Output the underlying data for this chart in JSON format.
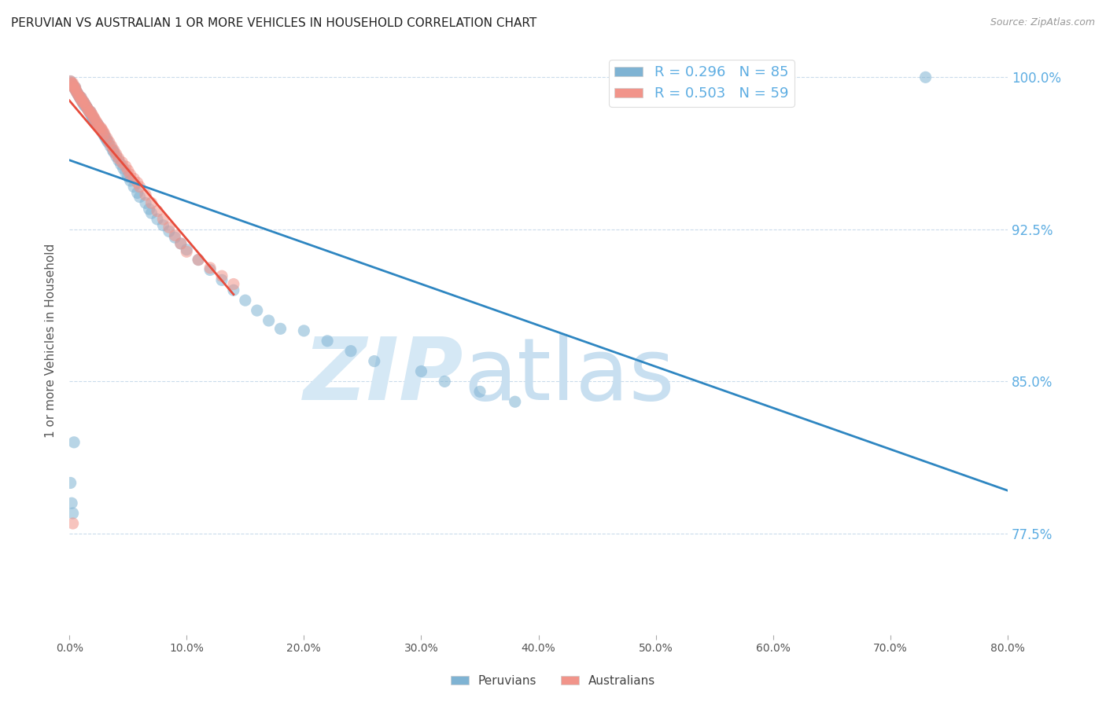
{
  "title": "PERUVIAN VS AUSTRALIAN 1 OR MORE VEHICLES IN HOUSEHOLD CORRELATION CHART",
  "source": "Source: ZipAtlas.com",
  "ylabel": "1 or more Vehicles in Household",
  "xlim": [
    0.0,
    0.8
  ],
  "ylim": [
    0.725,
    1.015
  ],
  "legend_labels": [
    "Peruvians",
    "Australians"
  ],
  "legend_R": [
    0.296,
    0.503
  ],
  "legend_N": [
    85,
    59
  ],
  "blue_color": "#7FB3D3",
  "pink_color": "#F1948A",
  "line_blue": "#2E86C1",
  "line_pink": "#E74C3C",
  "watermark_zip_color": "#D5E8F5",
  "watermark_atlas_color": "#C8DFF0",
  "grid_color": "#C5D8EA",
  "title_color": "#222222",
  "ytick_color": "#5DADE2",
  "background_color": "#FFFFFF",
  "peruvian_x": [
    0.001,
    0.002,
    0.003,
    0.004,
    0.005,
    0.005,
    0.006,
    0.007,
    0.007,
    0.008,
    0.009,
    0.009,
    0.01,
    0.01,
    0.011,
    0.012,
    0.012,
    0.013,
    0.013,
    0.014,
    0.015,
    0.015,
    0.016,
    0.017,
    0.018,
    0.018,
    0.019,
    0.02,
    0.02,
    0.021,
    0.022,
    0.023,
    0.024,
    0.025,
    0.026,
    0.027,
    0.028,
    0.029,
    0.03,
    0.031,
    0.032,
    0.033,
    0.035,
    0.037,
    0.038,
    0.04,
    0.042,
    0.044,
    0.046,
    0.048,
    0.05,
    0.052,
    0.055,
    0.058,
    0.06,
    0.065,
    0.068,
    0.07,
    0.075,
    0.08,
    0.085,
    0.09,
    0.095,
    0.1,
    0.11,
    0.12,
    0.13,
    0.14,
    0.15,
    0.16,
    0.17,
    0.18,
    0.2,
    0.22,
    0.24,
    0.26,
    0.3,
    0.32,
    0.35,
    0.38,
    0.001,
    0.002,
    0.003,
    0.73,
    0.004
  ],
  "peruvian_y": [
    0.998,
    0.997,
    0.996,
    0.995,
    0.995,
    0.994,
    0.993,
    0.992,
    0.992,
    0.991,
    0.99,
    0.99,
    0.99,
    0.989,
    0.988,
    0.988,
    0.987,
    0.987,
    0.986,
    0.986,
    0.985,
    0.985,
    0.984,
    0.983,
    0.983,
    0.982,
    0.981,
    0.98,
    0.98,
    0.979,
    0.978,
    0.977,
    0.977,
    0.976,
    0.975,
    0.974,
    0.973,
    0.972,
    0.971,
    0.97,
    0.969,
    0.968,
    0.966,
    0.964,
    0.963,
    0.961,
    0.959,
    0.957,
    0.955,
    0.953,
    0.951,
    0.949,
    0.946,
    0.943,
    0.941,
    0.938,
    0.935,
    0.933,
    0.93,
    0.927,
    0.924,
    0.921,
    0.918,
    0.915,
    0.91,
    0.905,
    0.9,
    0.895,
    0.89,
    0.885,
    0.88,
    0.876,
    0.875,
    0.87,
    0.865,
    0.86,
    0.855,
    0.85,
    0.845,
    0.84,
    0.8,
    0.79,
    0.785,
    1.0,
    0.82
  ],
  "australian_x": [
    0.001,
    0.002,
    0.003,
    0.003,
    0.004,
    0.005,
    0.005,
    0.006,
    0.007,
    0.008,
    0.009,
    0.01,
    0.01,
    0.011,
    0.012,
    0.013,
    0.014,
    0.015,
    0.016,
    0.017,
    0.018,
    0.019,
    0.02,
    0.021,
    0.022,
    0.023,
    0.024,
    0.025,
    0.026,
    0.027,
    0.028,
    0.029,
    0.03,
    0.032,
    0.034,
    0.036,
    0.038,
    0.04,
    0.042,
    0.045,
    0.048,
    0.05,
    0.052,
    0.055,
    0.058,
    0.06,
    0.065,
    0.07,
    0.075,
    0.08,
    0.085,
    0.09,
    0.095,
    0.1,
    0.11,
    0.12,
    0.13,
    0.14,
    0.003
  ],
  "australian_y": [
    0.998,
    0.997,
    0.997,
    0.996,
    0.995,
    0.995,
    0.994,
    0.993,
    0.992,
    0.991,
    0.99,
    0.99,
    0.989,
    0.988,
    0.988,
    0.987,
    0.986,
    0.985,
    0.984,
    0.983,
    0.983,
    0.982,
    0.981,
    0.98,
    0.979,
    0.978,
    0.977,
    0.976,
    0.975,
    0.975,
    0.974,
    0.973,
    0.972,
    0.97,
    0.968,
    0.966,
    0.964,
    0.962,
    0.96,
    0.958,
    0.956,
    0.954,
    0.952,
    0.95,
    0.948,
    0.946,
    0.942,
    0.938,
    0.934,
    0.93,
    0.926,
    0.922,
    0.918,
    0.914,
    0.91,
    0.906,
    0.902,
    0.898,
    0.78
  ]
}
